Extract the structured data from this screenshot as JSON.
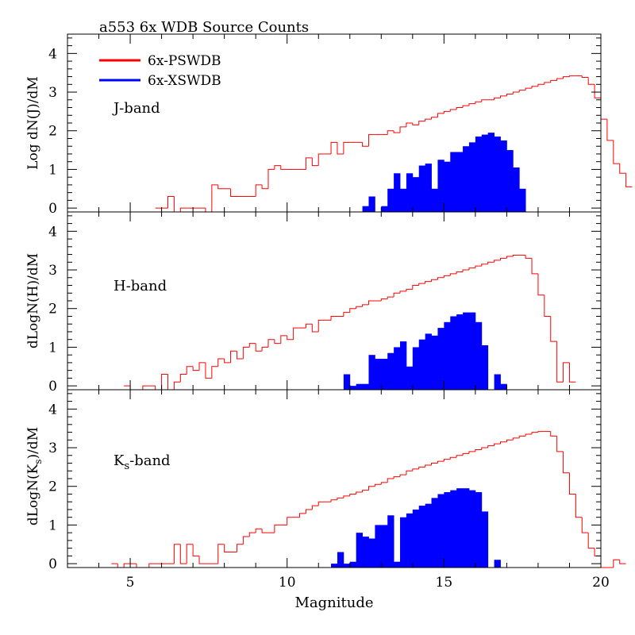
{
  "title": "a553  6x WDB Source Counts",
  "colors": {
    "psc": "#ff0000",
    "xsc": "#0000ff",
    "frame": "#000000"
  },
  "legend": {
    "placement": "top-left",
    "items": [
      {
        "label": "6x-PSWDB",
        "color": "#ff0000"
      },
      {
        "label": "6x-XSWDB",
        "color": "#0000ff"
      }
    ]
  },
  "chart_data": [
    {
      "type": "histogram",
      "panel": "top",
      "band_label": "J-band",
      "ylabel": "Log dN(J)/dM",
      "xlim": [
        3,
        20
      ],
      "ylim": [
        -0.1,
        4.5
      ],
      "yticks": [
        0,
        1,
        2,
        3,
        4
      ],
      "psc": {
        "start": 5.8,
        "step": 0.2,
        "values": [
          0,
          0,
          0.3,
          -0.1,
          0,
          0,
          0,
          0,
          -0.1,
          0.6,
          0.5,
          0.5,
          0.3,
          0.3,
          0.3,
          0.3,
          0.6,
          0.5,
          1.0,
          1.1,
          1.0,
          1.0,
          1.0,
          1.0,
          1.3,
          1.1,
          1.4,
          1.4,
          1.7,
          1.4,
          1.7,
          1.7,
          1.7,
          1.6,
          1.9,
          1.9,
          1.9,
          2.0,
          1.95,
          2.1,
          2.2,
          2.15,
          2.25,
          2.3,
          2.35,
          2.45,
          2.5,
          2.55,
          2.6,
          2.65,
          2.7,
          2.75,
          2.8,
          2.8,
          2.85,
          2.9,
          2.95,
          3.0,
          3.05,
          3.1,
          3.15,
          3.2,
          3.25,
          3.3,
          3.35,
          3.4,
          3.42,
          3.42,
          3.38,
          3.2,
          2.85,
          2.3,
          1.75,
          1.15,
          0.9,
          0.55
        ]
      },
      "xsc": {
        "start": 12.4,
        "step": 0.2,
        "values": [
          0.05,
          0.3,
          -0.1,
          0.05,
          0.5,
          0.9,
          0.5,
          0.9,
          0.8,
          1.1,
          1.15,
          0.5,
          1.25,
          1.2,
          1.45,
          1.45,
          1.6,
          1.7,
          1.85,
          1.9,
          1.95,
          1.85,
          1.75,
          1.5,
          1.05,
          0.5
        ]
      }
    },
    {
      "type": "histogram",
      "panel": "middle",
      "band_label": "H-band",
      "ylabel": "dLogN(H)/dM",
      "xlim": [
        3,
        20
      ],
      "ylim": [
        -0.1,
        4.5
      ],
      "yticks": [
        0,
        1,
        2,
        3,
        4
      ],
      "psc": {
        "start": 4.8,
        "step": 0.2,
        "values": [
          0,
          -0.1,
          -0.1,
          0,
          0,
          -0.1,
          0.3,
          -0.1,
          0.1,
          0.3,
          0.5,
          0.4,
          0.6,
          0.2,
          0.5,
          0.7,
          0.6,
          0.9,
          0.7,
          1.0,
          1.1,
          0.9,
          1.0,
          1.2,
          1.1,
          1.3,
          1.2,
          1.5,
          1.5,
          1.6,
          1.4,
          1.7,
          1.7,
          1.8,
          1.8,
          1.9,
          2.0,
          2.05,
          2.1,
          2.2,
          2.2,
          2.25,
          2.3,
          2.4,
          2.45,
          2.5,
          2.6,
          2.65,
          2.7,
          2.75,
          2.8,
          2.85,
          2.9,
          2.95,
          3.0,
          3.05,
          3.1,
          3.15,
          3.2,
          3.25,
          3.3,
          3.35,
          3.38,
          3.38,
          3.3,
          2.9,
          2.35,
          1.8,
          1.15,
          0.1,
          0.6,
          0.1
        ]
      },
      "xsc": {
        "start": 11.8,
        "step": 0.2,
        "values": [
          0.3,
          0,
          0.05,
          0.05,
          0.8,
          0.7,
          0.7,
          0.85,
          1.0,
          1.15,
          0.5,
          1.0,
          1.2,
          1.35,
          1.3,
          1.5,
          1.65,
          1.8,
          1.85,
          1.9,
          1.9,
          1.65,
          1.05,
          -0.1,
          0.3,
          0.05
        ]
      }
    },
    {
      "type": "histogram",
      "panel": "bottom",
      "band_label_main": "K",
      "band_label_sub": "s",
      "band_label_tail": "-band",
      "ylabel_main": "dLogN(K",
      "ylabel_sub": "s",
      "ylabel_tail": ")/dM",
      "xlabel": "Magnitude",
      "xlim": [
        3,
        20
      ],
      "ylim": [
        -0.1,
        4.5
      ],
      "yticks": [
        0,
        1,
        2,
        3,
        4
      ],
      "xticks": [
        5,
        10,
        15,
        20
      ],
      "psc": {
        "start": 4.4,
        "step": 0.2,
        "values": [
          0,
          -0.1,
          0,
          0,
          -0.1,
          -0.1,
          0,
          0,
          0,
          0,
          0.5,
          0,
          0.5,
          0.2,
          0,
          0,
          0,
          0.5,
          0.3,
          0.3,
          0.5,
          0.7,
          0.8,
          0.9,
          0.8,
          0.8,
          1.0,
          1.0,
          1.2,
          1.2,
          1.3,
          1.4,
          1.5,
          1.6,
          1.6,
          1.65,
          1.7,
          1.75,
          1.8,
          1.85,
          1.9,
          2.0,
          2.05,
          2.1,
          2.2,
          2.25,
          2.3,
          2.4,
          2.45,
          2.5,
          2.55,
          2.6,
          2.65,
          2.7,
          2.75,
          2.8,
          2.85,
          2.9,
          2.95,
          3.0,
          3.05,
          3.1,
          3.15,
          3.2,
          3.25,
          3.3,
          3.35,
          3.4,
          3.42,
          3.42,
          3.3,
          2.9,
          2.35,
          1.8,
          1.2,
          0.8,
          0.4,
          0.2,
          -0.1,
          -0.1,
          0.1,
          0
        ]
      },
      "xsc": {
        "start": 11.0,
        "step": 0.2,
        "values": [
          -0.1,
          -0.1,
          0,
          0.3,
          0,
          0.05,
          0.8,
          0.7,
          0.65,
          1.0,
          1.0,
          1.25,
          0.05,
          1.2,
          1.3,
          1.4,
          1.5,
          1.55,
          1.7,
          1.8,
          1.85,
          1.9,
          1.95,
          1.95,
          1.9,
          1.85,
          1.35,
          -0.1,
          0.1
        ]
      }
    }
  ]
}
